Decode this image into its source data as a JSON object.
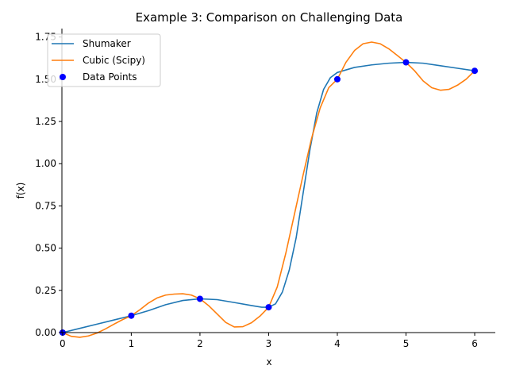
{
  "chart_data": {
    "type": "line",
    "title": "Example 3: Comparison on Challenging Data",
    "xlabel": "x",
    "ylabel": "f(x)",
    "xlim": [
      -0.01,
      6.3
    ],
    "ylim": [
      0.0,
      1.8
    ],
    "x_ticks": [
      0,
      1,
      2,
      3,
      4,
      5,
      6
    ],
    "x_tick_labels": [
      "0",
      "1",
      "2",
      "3",
      "4",
      "5",
      "6"
    ],
    "y_ticks": [
      0.0,
      0.25,
      0.5,
      0.75,
      1.0,
      1.25,
      1.5,
      1.75
    ],
    "y_tick_labels": [
      "0.00",
      "0.25",
      "0.50",
      "0.75",
      "1.00",
      "1.25",
      "1.50",
      "1.75"
    ],
    "grid": false,
    "legend_position": "top-left",
    "series": [
      {
        "name": "Shumaker",
        "style": "line",
        "color": "#1f77b4",
        "x": [
          0,
          0.25,
          0.5,
          0.75,
          1.0,
          1.25,
          1.5,
          1.75,
          2.0,
          2.25,
          2.5,
          2.75,
          2.9,
          3.0,
          3.1,
          3.2,
          3.3,
          3.4,
          3.5,
          3.6,
          3.7,
          3.8,
          3.9,
          4.0,
          4.25,
          4.5,
          4.75,
          5.0,
          5.25,
          5.5,
          5.75,
          6.0
        ],
        "y": [
          0.0,
          0.025,
          0.05,
          0.075,
          0.1,
          0.13,
          0.165,
          0.19,
          0.2,
          0.195,
          0.178,
          0.16,
          0.15,
          0.15,
          0.17,
          0.24,
          0.37,
          0.56,
          0.82,
          1.08,
          1.3,
          1.44,
          1.51,
          1.54,
          1.57,
          1.585,
          1.595,
          1.6,
          1.595,
          1.58,
          1.565,
          1.55
        ]
      },
      {
        "name": "Cubic (Scipy)",
        "style": "line",
        "color": "#ff7f0e",
        "x": [
          0,
          0.125,
          0.25,
          0.375,
          0.5,
          0.625,
          0.75,
          0.875,
          1.0,
          1.125,
          1.25,
          1.375,
          1.5,
          1.625,
          1.75,
          1.875,
          2.0,
          2.125,
          2.25,
          2.375,
          2.5,
          2.625,
          2.75,
          2.875,
          3.0,
          3.125,
          3.25,
          3.375,
          3.5,
          3.625,
          3.75,
          3.875,
          4.0,
          4.125,
          4.25,
          4.375,
          4.5,
          4.625,
          4.75,
          4.875,
          5.0,
          5.125,
          5.25,
          5.375,
          5.5,
          5.625,
          5.75,
          5.875,
          6.0
        ],
        "y": [
          0.0,
          -0.022,
          -0.028,
          -0.02,
          -0.003,
          0.022,
          0.05,
          0.077,
          0.1,
          0.135,
          0.175,
          0.205,
          0.222,
          0.228,
          0.23,
          0.222,
          0.2,
          0.16,
          0.11,
          0.06,
          0.033,
          0.035,
          0.058,
          0.098,
          0.15,
          0.27,
          0.47,
          0.7,
          0.93,
          1.15,
          1.33,
          1.45,
          1.5,
          1.6,
          1.67,
          1.71,
          1.72,
          1.71,
          1.68,
          1.64,
          1.6,
          1.55,
          1.49,
          1.45,
          1.435,
          1.44,
          1.465,
          1.5,
          1.55
        ]
      },
      {
        "name": "Data Points",
        "style": "markers",
        "color": "#0000ff",
        "x": [
          0,
          1,
          2,
          3,
          4,
          5,
          6
        ],
        "y": [
          0.0,
          0.1,
          0.2,
          0.15,
          1.5,
          1.6,
          1.55
        ]
      }
    ]
  }
}
